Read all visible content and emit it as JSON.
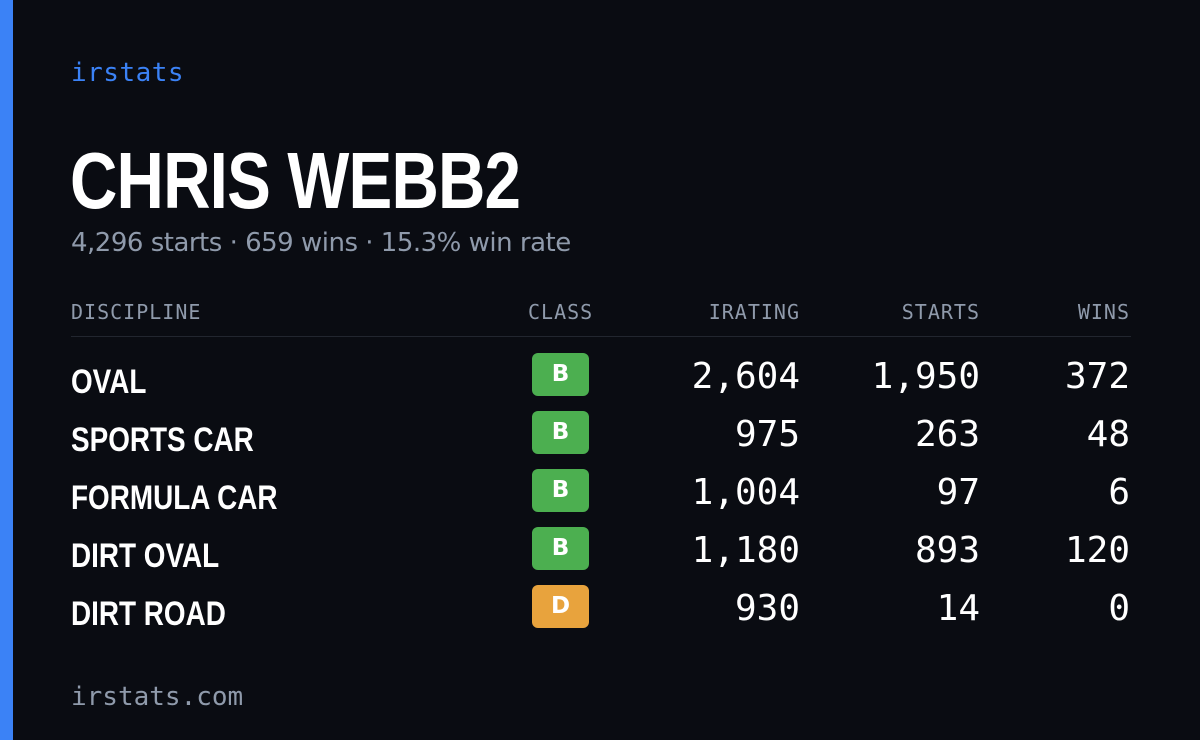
{
  "brand": "irstats",
  "driver": {
    "name": "CHRIS WEBB2",
    "summary": "4,296 starts · 659 wins · 15.3% win rate"
  },
  "table": {
    "headers": {
      "discipline": "DISCIPLINE",
      "class": "CLASS",
      "irating": "IRATING",
      "starts": "STARTS",
      "wins": "WINS"
    },
    "rows": [
      {
        "discipline": "OVAL",
        "class": "B",
        "class_color": "#4caf50",
        "irating": "2,604",
        "starts": "1,950",
        "wins": "372"
      },
      {
        "discipline": "SPORTS CAR",
        "class": "B",
        "class_color": "#4caf50",
        "irating": "975",
        "starts": "263",
        "wins": "48"
      },
      {
        "discipline": "FORMULA CAR",
        "class": "B",
        "class_color": "#4caf50",
        "irating": "1,004",
        "starts": "97",
        "wins": "6"
      },
      {
        "discipline": "DIRT OVAL",
        "class": "B",
        "class_color": "#4caf50",
        "irating": "1,180",
        "starts": "893",
        "wins": "120"
      },
      {
        "discipline": "DIRT ROAD",
        "class": "D",
        "class_color": "#e8a33d",
        "irating": "930",
        "starts": "14",
        "wins": "0"
      }
    ]
  },
  "footer": "irstats.com",
  "colors": {
    "accent": "#3b82f6",
    "background": "#0a0c12",
    "muted_text": "#8f9aab",
    "class_b": "#4caf50",
    "class_d": "#e8a33d"
  }
}
